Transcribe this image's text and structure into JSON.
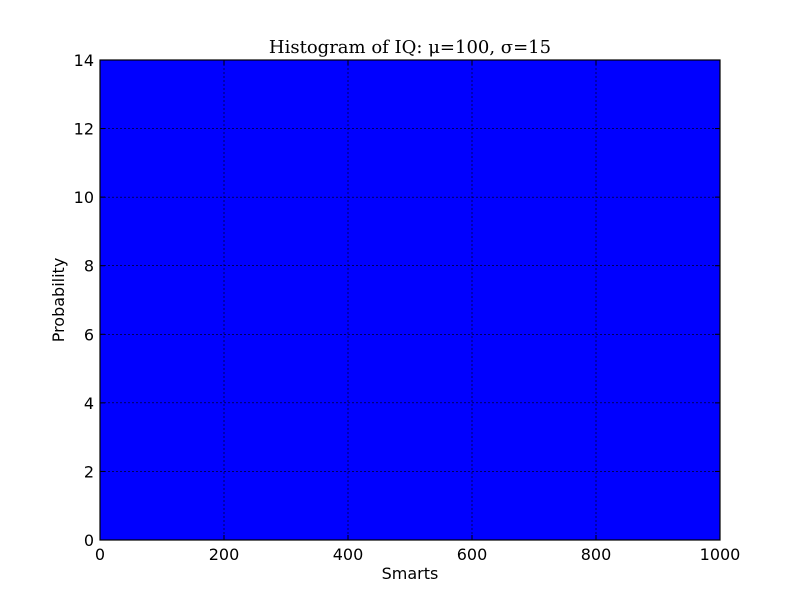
{
  "chart_data": {
    "type": "bar",
    "title": "Histogram of IQ: μ=100, σ=15",
    "xlabel": "Smarts",
    "ylabel": "Probability",
    "xlim": [
      0,
      1000
    ],
    "ylim": [
      0,
      14
    ],
    "x_ticks": [
      "0",
      "200",
      "400",
      "600",
      "800",
      "1000"
    ],
    "y_ticks": [
      "0",
      "2",
      "4",
      "6",
      "8",
      "10",
      "12",
      "14"
    ],
    "grid": true,
    "bars": [
      {
        "x0": 0,
        "x1": 1000,
        "value": 14
      }
    ],
    "colors": {
      "bar_fill": "#0000ff",
      "axes": "#000000",
      "grid": "#000000"
    }
  }
}
